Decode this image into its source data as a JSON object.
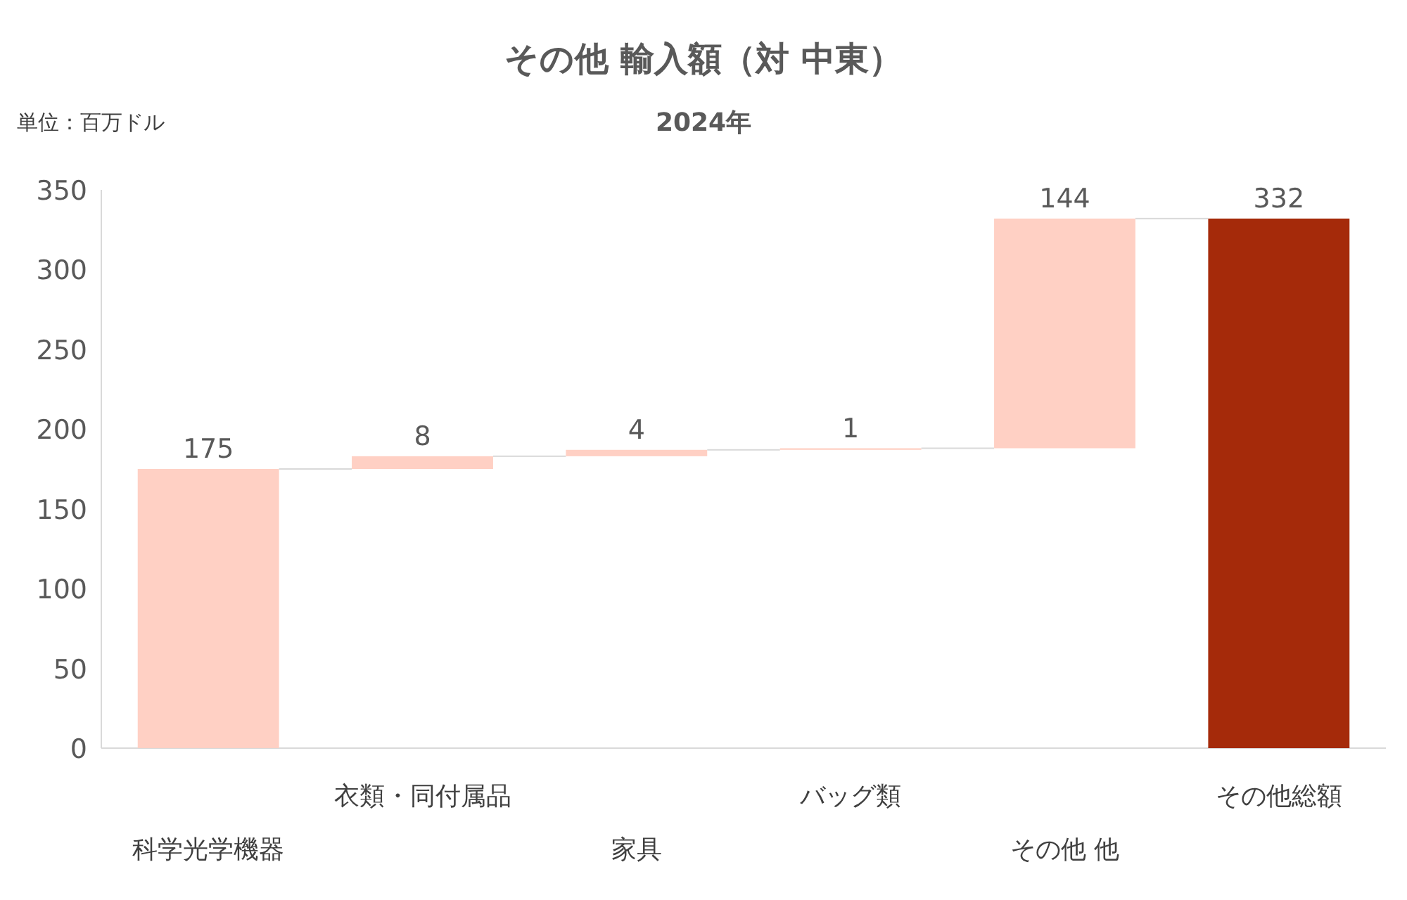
{
  "chart_data": {
    "type": "bar",
    "title": "その他 輸入額（対 中東）",
    "subtitle": "2024年",
    "annotations": [
      "単位：百万ドル"
    ],
    "categories": [
      "科学光学機器",
      "衣類・同付属品",
      "家具",
      "バッグ類",
      "その他 他",
      "その他総額"
    ],
    "values": [
      175,
      8,
      4,
      1,
      144,
      332
    ],
    "base": [
      0,
      175,
      183,
      187,
      188,
      0
    ],
    "colors": [
      "#ffd0c4",
      "#ffd0c4",
      "#ffd0c4",
      "#ffd0c4",
      "#ffd0c4",
      "#a52a0a"
    ],
    "ylim": [
      0,
      350
    ],
    "yticks": [
      0,
      50,
      100,
      150,
      200,
      250,
      300,
      350
    ],
    "data_labels": true
  }
}
